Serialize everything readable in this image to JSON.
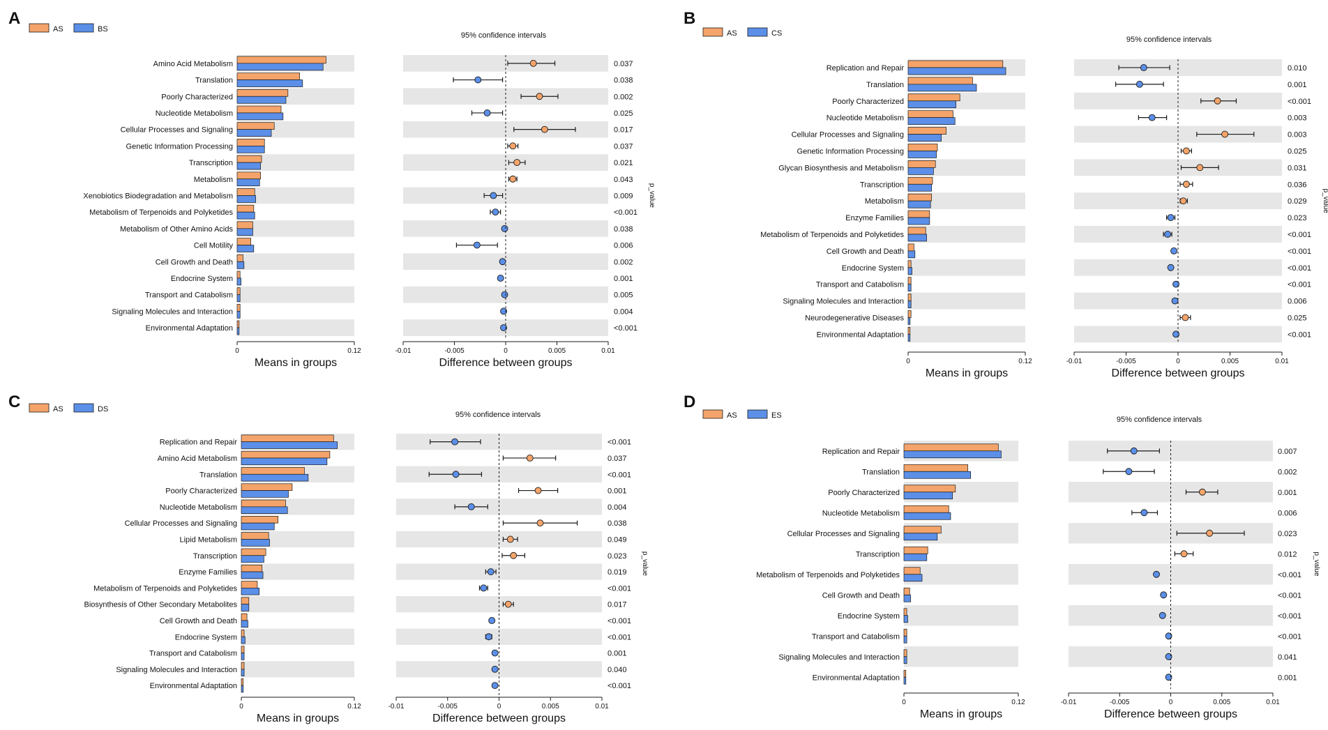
{
  "colors": {
    "group_a": "#F4A46A",
    "group_b": "#5B8FE8",
    "band": "#E6E6E6",
    "stroke": "#1a1a1a"
  },
  "common": {
    "means_xlabel": "Means in groups",
    "diff_xlabel": "Difference between groups",
    "ci_title": "95% confidence intervals",
    "pvalue_label": "p_value",
    "means_ticks": [
      "0",
      "0.12"
    ],
    "diff_ticks": [
      "-0.01",
      "-0.005",
      "0",
      "0.005",
      "0.01"
    ]
  },
  "chart_data": [
    {
      "type": "bar",
      "panel": "A",
      "legend": [
        "AS",
        "BS"
      ],
      "categories": [
        "Amino Acid Metabolism",
        "Translation",
        "Poorly Characterized",
        "Nucleotide Metabolism",
        "Cellular Processes and Signaling",
        "Genetic Information Processing",
        "Transcription",
        "Metabolism",
        "Xenobiotics Biodegradation and Metabolism",
        "Metabolism of Terpenoids and Polyketides",
        "Metabolism of Other Amino Acids",
        "Cell Motility",
        "Cell Growth and Death",
        "Endocrine System",
        "Transport and Catabolism",
        "Signaling Molecules and Interaction",
        "Environmental Adaptation"
      ],
      "series": [
        {
          "name": "AS",
          "values": [
            0.091,
            0.064,
            0.052,
            0.045,
            0.038,
            0.028,
            0.025,
            0.024,
            0.018,
            0.017,
            0.016,
            0.014,
            0.006,
            0.003,
            0.003,
            0.003,
            0.002
          ]
        },
        {
          "name": "BS",
          "values": [
            0.088,
            0.067,
            0.05,
            0.047,
            0.035,
            0.028,
            0.024,
            0.023,
            0.019,
            0.018,
            0.016,
            0.017,
            0.007,
            0.004,
            0.003,
            0.003,
            0.002
          ]
        }
      ],
      "means_xlim": [
        0,
        0.12
      ],
      "diff_xlim": [
        -0.01,
        0.01
      ],
      "differences": [
        0.0027,
        -0.0027,
        0.0033,
        -0.0018,
        0.0038,
        0.0007,
        0.0011,
        0.0007,
        -0.0012,
        -0.001,
        -0.0001,
        -0.0028,
        -0.0003,
        -0.0005,
        -0.0001,
        -0.0002,
        -0.0002
      ],
      "ci": [
        [
          0.0002,
          0.0048
        ],
        [
          -0.0051,
          -0.0003
        ],
        [
          0.0015,
          0.0051
        ],
        [
          -0.0033,
          -0.0003
        ],
        [
          0.0008,
          0.0068
        ],
        [
          0.0002,
          0.0012
        ],
        [
          0.0003,
          0.0019
        ],
        [
          0.0003,
          0.0011
        ],
        [
          -0.0021,
          -0.0003
        ],
        [
          -0.0015,
          -0.0005
        ],
        [
          -0.0002,
          0.0
        ],
        [
          -0.0048,
          -0.0008
        ],
        [
          -0.0005,
          -0.0001
        ],
        [
          -0.0007,
          -0.0003
        ],
        [
          -0.0002,
          0.0
        ],
        [
          -0.0003,
          -0.0001
        ],
        [
          -0.0003,
          -0.0001
        ]
      ],
      "p_values": [
        "0.037",
        "0.038",
        "0.002",
        "0.025",
        "0.017",
        "0.037",
        "0.021",
        "0.043",
        "0.009",
        "<0.001",
        "0.038",
        "0.006",
        "0.002",
        "0.001",
        "0.005",
        "0.004",
        "<0.001"
      ]
    },
    {
      "type": "bar",
      "panel": "B",
      "legend": [
        "AS",
        "CS"
      ],
      "categories": [
        "Replication and Repair",
        "Translation",
        "Poorly Characterized",
        "Nucleotide Metabolism",
        "Cellular Processes and Signaling",
        "Genetic Information Processing",
        "Glycan Biosynthesis and Metabolism",
        "Transcription",
        "Metabolism",
        "Enzyme Families",
        "Metabolism of Terpenoids and Polyketides",
        "Cell Growth and Death",
        "Endocrine System",
        "Transport and Catabolism",
        "Signaling Molecules and Interaction",
        "Neurodegenerative Diseases",
        "Environmental Adaptation"
      ],
      "series": [
        {
          "name": "AS",
          "values": [
            0.097,
            0.066,
            0.053,
            0.046,
            0.039,
            0.03,
            0.028,
            0.025,
            0.024,
            0.022,
            0.018,
            0.006,
            0.003,
            0.003,
            0.003,
            0.003,
            0.002
          ]
        },
        {
          "name": "CS",
          "values": [
            0.1,
            0.07,
            0.049,
            0.048,
            0.034,
            0.029,
            0.026,
            0.024,
            0.023,
            0.022,
            0.019,
            0.007,
            0.004,
            0.003,
            0.003,
            0.002,
            0.002
          ]
        }
      ],
      "means_xlim": [
        0,
        0.12
      ],
      "diff_xlim": [
        -0.01,
        0.01
      ],
      "differences": [
        -0.0033,
        -0.0037,
        0.0038,
        -0.0025,
        0.0045,
        0.0008,
        0.0021,
        0.0008,
        0.0005,
        -0.0007,
        -0.001,
        -0.0004,
        -0.0007,
        -0.0002,
        -0.0003,
        0.0007,
        -0.0002
      ],
      "ci": [
        [
          -0.0057,
          -0.0008
        ],
        [
          -0.006,
          -0.0014
        ],
        [
          0.0022,
          0.0056
        ],
        [
          -0.0038,
          -0.0011
        ],
        [
          0.0018,
          0.0073
        ],
        [
          0.0003,
          0.0013
        ],
        [
          0.0003,
          0.0039
        ],
        [
          0.0002,
          0.0014
        ],
        [
          0.0002,
          0.0009
        ],
        [
          -0.0011,
          -0.0003
        ],
        [
          -0.0014,
          -0.0006
        ],
        [
          -0.0005,
          -0.0003
        ],
        [
          -0.0009,
          -0.0005
        ],
        [
          -0.0003,
          -0.0001
        ],
        [
          -0.0004,
          -0.0002
        ],
        [
          0.0002,
          0.0012
        ],
        [
          -0.0003,
          -0.0001
        ]
      ],
      "p_values": [
        "0.010",
        "0.001",
        "<0.001",
        "0.003",
        "0.003",
        "0.025",
        "0.031",
        "0.036",
        "0.029",
        "0.023",
        "<0.001",
        "<0.001",
        "<0.001",
        "<0.001",
        "0.006",
        "0.025",
        "<0.001"
      ]
    },
    {
      "type": "bar",
      "panel": "C",
      "legend": [
        "AS",
        "DS"
      ],
      "categories": [
        "Replication and Repair",
        "Amino Acid Metabolism",
        "Translation",
        "Poorly Characterized",
        "Nucleotide Metabolism",
        "Cellular Processes and Signaling",
        "Lipid Metabolism",
        "Transcription",
        "Enzyme Families",
        "Metabolism of Terpenoids and Polyketides",
        "Biosynthesis of Other Secondary Metabolites",
        "Cell Growth and Death",
        "Endocrine System",
        "Transport and Catabolism",
        "Signaling Molecules and Interaction",
        "Environmental Adaptation"
      ],
      "series": [
        {
          "name": "AS",
          "values": [
            0.098,
            0.094,
            0.067,
            0.054,
            0.047,
            0.039,
            0.029,
            0.026,
            0.022,
            0.017,
            0.008,
            0.006,
            0.003,
            0.003,
            0.003,
            0.002
          ]
        },
        {
          "name": "DS",
          "values": [
            0.102,
            0.091,
            0.071,
            0.05,
            0.049,
            0.035,
            0.03,
            0.024,
            0.023,
            0.019,
            0.008,
            0.007,
            0.004,
            0.003,
            0.003,
            0.002
          ]
        }
      ],
      "means_xlim": [
        0,
        0.12
      ],
      "diff_xlim": [
        -0.01,
        0.01
      ],
      "differences": [
        -0.0043,
        0.003,
        -0.0042,
        0.0038,
        -0.0027,
        0.004,
        0.0011,
        0.0014,
        -0.0008,
        -0.0015,
        0.0009,
        -0.0007,
        -0.001,
        -0.0004,
        -0.0004,
        -0.0004
      ],
      "ci": [
        [
          -0.0067,
          -0.0018
        ],
        [
          0.0004,
          0.0055
        ],
        [
          -0.0068,
          -0.0017
        ],
        [
          0.0019,
          0.0057
        ],
        [
          -0.0043,
          -0.0011
        ],
        [
          0.0004,
          0.0076
        ],
        [
          0.0004,
          0.0018
        ],
        [
          0.0003,
          0.0025
        ],
        [
          -0.0013,
          -0.0003
        ],
        [
          -0.0019,
          -0.0011
        ],
        [
          0.0004,
          0.0014
        ],
        [
          -0.0009,
          -0.0005
        ],
        [
          -0.0013,
          -0.0007
        ],
        [
          -0.0005,
          -0.0003
        ],
        [
          -0.0005,
          -0.0003
        ],
        [
          -0.0005,
          -0.0003
        ]
      ],
      "p_values": [
        "<0.001",
        "0.037",
        "<0.001",
        "0.001",
        "0.004",
        "0.038",
        "0.049",
        "0.023",
        "0.019",
        "<0.001",
        "0.017",
        "<0.001",
        "<0.001",
        "0.001",
        "0.040",
        "<0.001"
      ]
    },
    {
      "type": "bar",
      "panel": "D",
      "legend": [
        "AS",
        "ES"
      ],
      "categories": [
        "Replication and Repair",
        "Translation",
        "Poorly Characterized",
        "Nucleotide Metabolism",
        "Cellular Processes and Signaling",
        "Transcription",
        "Metabolism of Terpenoids and Polyketides",
        "Cell Growth and Death",
        "Endocrine System",
        "Transport and Catabolism",
        "Signaling Molecules and Interaction",
        "Environmental Adaptation"
      ],
      "series": [
        {
          "name": "AS",
          "values": [
            0.099,
            0.067,
            0.054,
            0.047,
            0.039,
            0.025,
            0.017,
            0.006,
            0.003,
            0.003,
            0.003,
            0.002
          ]
        },
        {
          "name": "ES",
          "values": [
            0.102,
            0.07,
            0.051,
            0.049,
            0.035,
            0.024,
            0.019,
            0.007,
            0.004,
            0.003,
            0.003,
            0.002
          ]
        }
      ],
      "means_xlim": [
        0,
        0.12
      ],
      "diff_xlim": [
        -0.01,
        0.01
      ],
      "differences": [
        -0.0036,
        -0.0041,
        0.0031,
        -0.0026,
        0.0038,
        0.0013,
        -0.0014,
        -0.0007,
        -0.0008,
        -0.0002,
        -0.0002,
        -0.0002
      ],
      "ci": [
        [
          -0.0062,
          -0.0011
        ],
        [
          -0.0066,
          -0.0016
        ],
        [
          0.0015,
          0.0046
        ],
        [
          -0.0038,
          -0.0013
        ],
        [
          0.0006,
          0.0072
        ],
        [
          0.0004,
          0.0022
        ],
        [
          -0.0016,
          -0.0012
        ],
        [
          -0.0008,
          -0.0006
        ],
        [
          -0.001,
          -0.0006
        ],
        [
          -0.0003,
          -0.0001
        ],
        [
          -0.0003,
          -0.0001
        ],
        [
          -0.0003,
          -0.0001
        ]
      ],
      "p_values": [
        "0.007",
        "0.002",
        "0.001",
        "0.006",
        "0.023",
        "0.012",
        "<0.001",
        "<0.001",
        "<0.001",
        "<0.001",
        "0.041",
        "0.001"
      ]
    }
  ]
}
